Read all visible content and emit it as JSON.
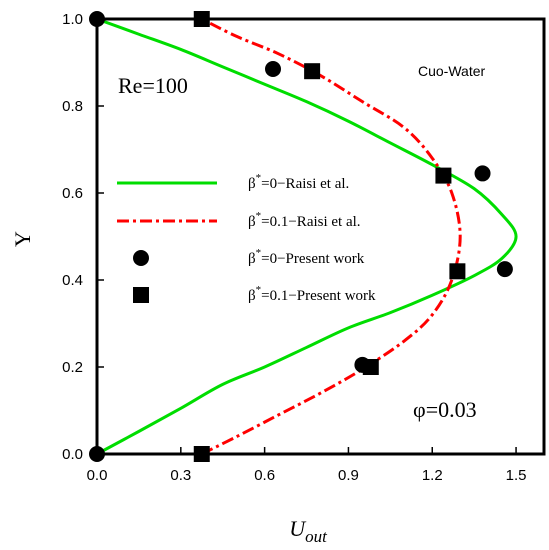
{
  "chart_data": {
    "type": "line",
    "xlabel": "U",
    "xlabel_sub": "out",
    "ylabel": "Y",
    "xlim": [
      0,
      1.6
    ],
    "ylim": [
      0,
      1.0
    ],
    "xticks": [
      0.0,
      0.3,
      0.6,
      0.9,
      1.2,
      1.5
    ],
    "xtick_labels": [
      "0.0",
      "0.3",
      "0.6",
      "0.9",
      "1.2",
      "1.5"
    ],
    "yticks": [
      0.0,
      0.2,
      0.4,
      0.6,
      0.8,
      1.0
    ],
    "ytick_labels": [
      "0.0",
      "0.2",
      "0.4",
      "0.6",
      "0.8",
      "1.0"
    ],
    "annotations": {
      "re": "Re=100",
      "fluid": "Cuo-Water",
      "phi": "φ=0.03"
    },
    "series": [
      {
        "name": "β*=0−Raisi et al.",
        "legend_sym": "β",
        "legend_sup": "*",
        "legend_rest": "=0−Raisi et al.",
        "kind": "line",
        "style": "solid",
        "color": "#00dd00",
        "x": [
          0.0,
          0.15,
          0.3,
          0.45,
          0.6,
          0.75,
          0.9,
          1.05,
          1.2,
          1.35,
          1.45,
          1.5,
          1.45,
          1.35,
          1.2,
          1.05,
          0.9,
          0.75,
          0.6,
          0.45,
          0.3,
          0.15,
          0.0
        ],
        "y": [
          0.0,
          0.052,
          0.105,
          0.16,
          0.2,
          0.245,
          0.29,
          0.325,
          0.365,
          0.41,
          0.45,
          0.5,
          0.55,
          0.61,
          0.665,
          0.715,
          0.765,
          0.81,
          0.85,
          0.89,
          0.93,
          0.965,
          1.0
        ]
      },
      {
        "name": "β*=0.1−Raisi et al.",
        "legend_sym": "β",
        "legend_sup": "*",
        "legend_rest": "=0.1−Raisi et al.",
        "kind": "line",
        "style": "dashdot",
        "color": "#ff0000",
        "x": [
          0.375,
          0.5,
          0.65,
          0.8,
          0.95,
          1.1,
          1.2,
          1.27,
          1.3,
          1.27,
          1.2,
          1.1,
          0.95,
          0.8,
          0.65,
          0.5,
          0.375
        ],
        "y": [
          0.0,
          0.04,
          0.09,
          0.14,
          0.195,
          0.26,
          0.32,
          0.4,
          0.5,
          0.6,
          0.68,
          0.75,
          0.81,
          0.87,
          0.92,
          0.96,
          1.0
        ]
      },
      {
        "name": "β*=0−Present work",
        "legend_sym": "β",
        "legend_sup": "*",
        "legend_rest": "=0−Present work",
        "kind": "marker",
        "marker": "circle",
        "color": "#000000",
        "x": [
          0.0,
          0.63,
          1.38,
          1.46,
          0.95,
          0.0
        ],
        "y": [
          1.0,
          0.885,
          0.645,
          0.425,
          0.205,
          0.0
        ]
      },
      {
        "name": "β*=0.1−Present work",
        "legend_sym": "β",
        "legend_sup": "*",
        "legend_rest": "=0.1−Present work",
        "kind": "marker",
        "marker": "square",
        "color": "#000000",
        "x": [
          0.375,
          0.77,
          1.24,
          1.29,
          0.98,
          0.375
        ],
        "y": [
          1.0,
          0.88,
          0.64,
          0.42,
          0.2,
          0.0
        ]
      }
    ]
  }
}
